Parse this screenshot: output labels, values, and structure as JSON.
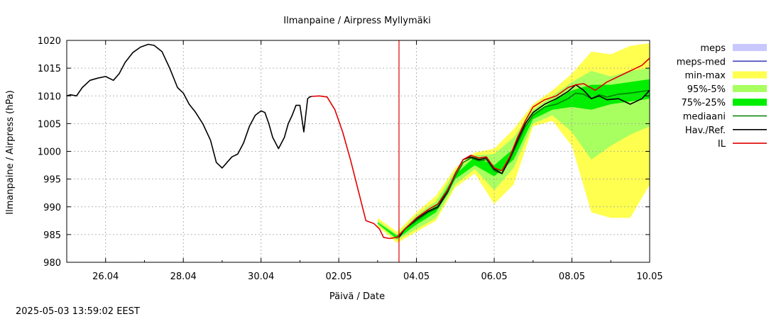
{
  "chart_data": {
    "type": "line",
    "title": "Ilmanpaine / Airpress Myllymäki",
    "xlabel": "Päivä / Date",
    "ylabel": "Ilmanpaine / Airpress (hPa)",
    "x_range": [
      0,
      15
    ],
    "ylim": [
      980,
      1020
    ],
    "y_ticks": [
      980,
      985,
      990,
      995,
      1000,
      1005,
      1010,
      1015,
      1020
    ],
    "x_ticks": [
      {
        "x": 1,
        "label": "26.04"
      },
      {
        "x": 3,
        "label": "28.04"
      },
      {
        "x": 5,
        "label": "30.04"
      },
      {
        "x": 7,
        "label": "02.05"
      },
      {
        "x": 9,
        "label": "04.05"
      },
      {
        "x": 11,
        "label": "06.05"
      },
      {
        "x": 13,
        "label": "08.05"
      },
      {
        "x": 15,
        "label": "10.05"
      }
    ],
    "grid": true,
    "forecast_start_x": 8.55,
    "timestamp": "2025-05-03 13:59:02 EEST",
    "legend": [
      {
        "label": "meps",
        "kind": "box",
        "color": "#c8c8ff"
      },
      {
        "label": "meps-med",
        "kind": "line",
        "color": "#4040c0"
      },
      {
        "label": "min-max",
        "kind": "box",
        "color": "#ffff50"
      },
      {
        "label": "95%-5%",
        "kind": "box",
        "color": "#a8ff60"
      },
      {
        "label": "75%-25%",
        "kind": "box",
        "color": "#00ee00"
      },
      {
        "label": "mediaani",
        "kind": "line",
        "color": "#008000"
      },
      {
        "label": "Hav./Ref.",
        "kind": "line",
        "color": "#000000"
      },
      {
        "label": "IL",
        "kind": "line",
        "color": "#e00000"
      }
    ],
    "series": [
      {
        "name": "Hav./Ref.",
        "color": "#000000",
        "x": [
          0,
          0.1,
          0.25,
          0.4,
          0.6,
          0.8,
          1.0,
          1.2,
          1.35,
          1.5,
          1.7,
          1.9,
          2.1,
          2.25,
          2.45,
          2.65,
          2.85,
          3.0,
          3.15,
          3.3,
          3.5,
          3.7,
          3.85,
          4.0,
          4.1,
          4.25,
          4.4,
          4.55,
          4.7,
          4.85,
          5.0,
          5.1,
          5.2,
          5.3,
          5.45,
          5.6,
          5.7,
          5.8,
          5.9,
          6.0,
          6.05,
          6.1,
          6.15,
          6.2,
          6.25,
          6.3
        ],
        "y": [
          1010,
          1010.2,
          1010,
          1011.5,
          1012.8,
          1013.2,
          1013.5,
          1012.8,
          1014,
          1016,
          1017.8,
          1018.8,
          1019.3,
          1019.1,
          1018,
          1015,
          1011.5,
          1010.5,
          1008.5,
          1007.2,
          1005,
          1002,
          998,
          997,
          997.8,
          999,
          999.5,
          1001.5,
          1004.5,
          1006.5,
          1007.3,
          1007,
          1005,
          1002.5,
          1000.5,
          1002.5,
          1005,
          1006.5,
          1008.3,
          1008.3,
          1006,
          1003.5,
          1006.5,
          1009.5,
          1009.8,
          1009.9
        ]
      },
      {
        "name": "IL",
        "color": "#e00000",
        "x": [
          6.3,
          6.5,
          6.7,
          6.9,
          7.1,
          7.3,
          7.5,
          7.7,
          7.9,
          8.05,
          8.15,
          8.3,
          8.5,
          8.7,
          9.0,
          9.3,
          9.55,
          9.8,
          10.0,
          10.2,
          10.4,
          10.6,
          10.8,
          11.0,
          11.2,
          11.4,
          11.6,
          11.8,
          12.0,
          12.3,
          12.6,
          12.9,
          13.1,
          13.3,
          13.6,
          13.9,
          14.2,
          14.5,
          14.8,
          15.0
        ],
        "y": [
          1009.9,
          1010,
          1009.8,
          1007.5,
          1003.5,
          998.5,
          993,
          987.5,
          987,
          986,
          984.5,
          984.3,
          984.5,
          986,
          988,
          989.5,
          990.5,
          993,
          996,
          998.5,
          999.3,
          998.8,
          999,
          997,
          996.5,
          999,
          1002.5,
          1005.5,
          1008,
          1009.3,
          1010,
          1011.5,
          1012,
          1012.2,
          1011,
          1012.5,
          1013.5,
          1014.5,
          1015.5,
          1016.8
        ]
      },
      {
        "name": "mediaani",
        "color": "#008000",
        "x": [
          8.5,
          8.7,
          9.0,
          9.3,
          9.55,
          9.8,
          10.0,
          10.2,
          10.4,
          10.6,
          10.8,
          11.0,
          11.2,
          11.4,
          11.6,
          11.8,
          12.0,
          12.3,
          12.6,
          12.9,
          13.1,
          13.3,
          13.5,
          13.7,
          13.9,
          14.2,
          14.5,
          14.8,
          15.0
        ],
        "y": [
          984.5,
          986,
          987.5,
          989,
          989.8,
          992.5,
          995.5,
          998,
          998.8,
          998.3,
          998.5,
          996.5,
          996,
          998.5,
          1001.5,
          1004.5,
          1006.5,
          1008,
          1008.5,
          1009.5,
          1010.5,
          1010.3,
          1009.5,
          1010.2,
          1009.8,
          1010.3,
          1010.5,
          1010.8,
          1011
        ]
      },
      {
        "name": "Hav./Ref. (forecast)",
        "color": "#000000",
        "x": [
          8.55,
          8.7,
          9.0,
          9.3,
          9.55,
          9.8,
          10.0,
          10.2,
          10.4,
          10.6,
          10.8,
          11.0,
          11.2,
          11.4,
          11.6,
          11.8,
          12.0,
          12.3,
          12.6,
          12.9,
          13.1,
          13.3,
          13.5,
          13.7,
          13.9,
          14.2,
          14.5,
          14.8,
          15.0
        ],
        "y": [
          984.5,
          986,
          987.8,
          989.2,
          990,
          992.8,
          996,
          998.5,
          999,
          998.5,
          998.8,
          996.8,
          996,
          998.8,
          1002,
          1005,
          1007,
          1008.5,
          1009.5,
          1010.8,
          1012,
          1011,
          1009.5,
          1010,
          1009.3,
          1009.5,
          1008.5,
          1009.5,
          1011
        ]
      }
    ],
    "bands": [
      {
        "name": "min-max",
        "color": "#ffff50",
        "x": [
          8.0,
          8.5,
          9.0,
          9.5,
          10.0,
          10.5,
          11.0,
          11.5,
          12.0,
          12.5,
          13.0,
          13.5,
          14.0,
          14.5,
          15.0
        ],
        "upper": [
          988,
          985.5,
          989,
          992,
          997,
          999.8,
          1000.5,
          1004,
          1008.5,
          1011,
          1014,
          1018,
          1017.5,
          1019,
          1019.5
        ],
        "lower": [
          986.5,
          983.5,
          985.5,
          987.5,
          993.5,
          996,
          990.5,
          994,
          1004.5,
          1005.5,
          1001,
          989,
          988,
          988,
          994
        ]
      },
      {
        "name": "95%-5%",
        "color": "#a8ff60",
        "x": [
          8.0,
          8.5,
          9.0,
          9.5,
          10.0,
          10.5,
          11.0,
          11.5,
          12.0,
          12.5,
          13.0,
          13.5,
          14.0,
          14.5,
          15.0
        ],
        "upper": [
          987.5,
          985,
          988.5,
          991,
          996.5,
          999.3,
          999.5,
          1002.5,
          1007.5,
          1010,
          1012.5,
          1014.5,
          1013.5,
          1014.5,
          1015
        ],
        "lower": [
          986.8,
          984,
          986,
          988,
          994,
          996.8,
          993,
          997,
          1005,
          1006.5,
          1003.5,
          998.5,
          1001,
          1003,
          1004.5
        ]
      },
      {
        "name": "75%-25%",
        "color": "#00ee00",
        "x": [
          8.0,
          8.5,
          9.0,
          9.5,
          10.0,
          10.5,
          11.0,
          11.5,
          12.0,
          12.5,
          13.0,
          13.5,
          14.0,
          14.5,
          15.0
        ],
        "upper": [
          987.2,
          984.8,
          987.8,
          990.2,
          995.8,
          999,
          997.5,
          1000.5,
          1006.8,
          1009,
          1011,
          1012,
          1012,
          1012.5,
          1013
        ],
        "lower": [
          987,
          984.2,
          986.8,
          989,
          995,
          997.5,
          995.5,
          998.5,
          1005.8,
          1007.5,
          1008,
          1007.5,
          1008.5,
          1009,
          1009.5
        ]
      }
    ]
  }
}
